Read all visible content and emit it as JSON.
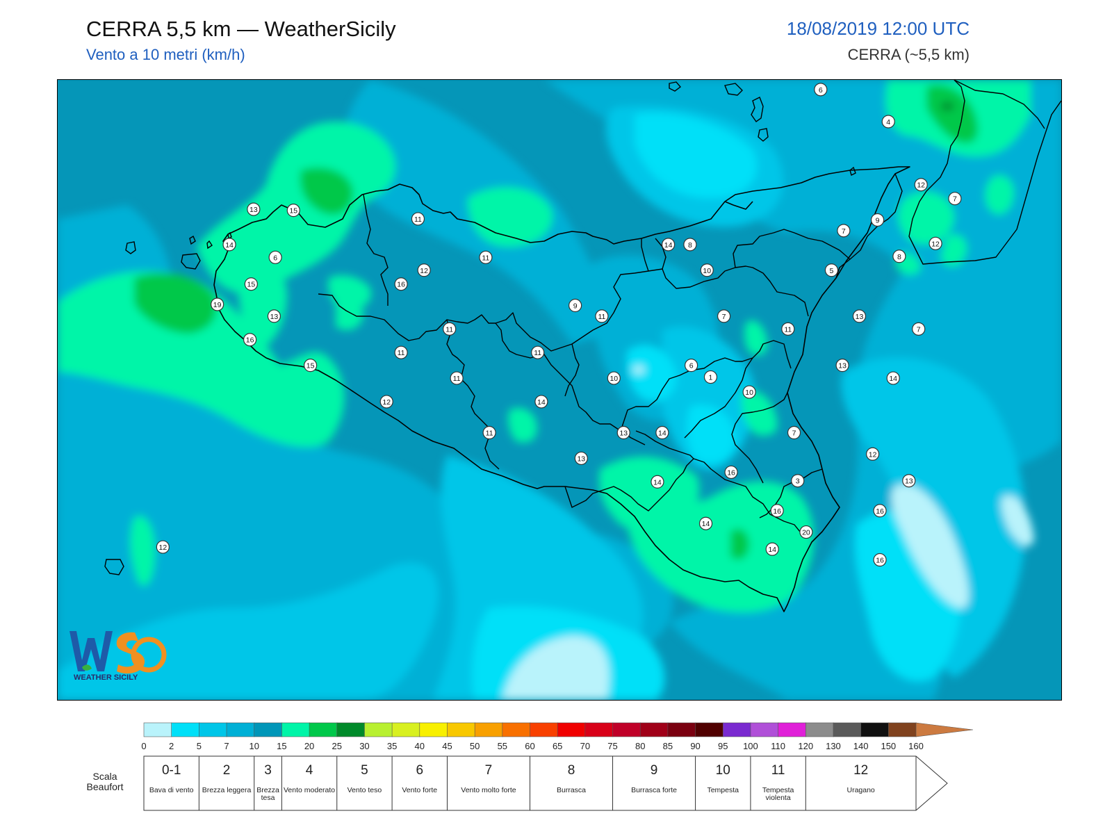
{
  "header": {
    "title": "CERRA 5,5 km — WeatherSicily",
    "subtitle": "Vento a 10 metri (km/h)",
    "datetime": "18/08/2019 12:00 UTC",
    "model": "CERRA (~5,5 km)"
  },
  "logo": {
    "icon": "weathersicily-logo",
    "text": "WEATHER SICILY"
  },
  "colorbar": {
    "ticks": [
      "0",
      "2",
      "5",
      "7",
      "10",
      "15",
      "20",
      "25",
      "30",
      "35",
      "40",
      "45",
      "50",
      "55",
      "60",
      "65",
      "70",
      "75",
      "80",
      "85",
      "90",
      "95",
      "100",
      "110",
      "120",
      "130",
      "140",
      "150",
      "160"
    ],
    "colors": [
      "#b9f3fb",
      "#00e0f8",
      "#00c6e8",
      "#00b0d6",
      "#0096b8",
      "#00f5a8",
      "#00c84a",
      "#008a2a",
      "#b8f030",
      "#d8f020",
      "#f8f000",
      "#f8c800",
      "#f8a000",
      "#f87000",
      "#f84000",
      "#f00000",
      "#d80018",
      "#c00028",
      "#a00018",
      "#7a0010",
      "#500000",
      "#7a2ad0",
      "#b050d8",
      "#e020d8",
      "#8c8c8c",
      "#5a5a5a",
      "#101010",
      "#80421e",
      "#cc7a40"
    ]
  },
  "beaufort": {
    "label": "Scala Beaufort",
    "levels": [
      {
        "num": "0-1",
        "desc": "Bava di vento"
      },
      {
        "num": "2",
        "desc": "Brezza leggera"
      },
      {
        "num": "3",
        "desc": "Brezza tesa"
      },
      {
        "num": "4",
        "desc": "Vento moderato"
      },
      {
        "num": "5",
        "desc": "Vento teso"
      },
      {
        "num": "6",
        "desc": "Vento forte"
      },
      {
        "num": "7",
        "desc": "Vento molto forte"
      },
      {
        "num": "8",
        "desc": "Burrasca"
      },
      {
        "num": "9",
        "desc": "Burrasca forte"
      },
      {
        "num": "10",
        "desc": "Tempesta"
      },
      {
        "num": "11",
        "desc": "Tempesta violenta"
      },
      {
        "num": "12",
        "desc": "Uragano"
      }
    ]
  },
  "stations": [
    {
      "v": 6,
      "lon": 14.955,
      "lat": 38.705
    },
    {
      "v": 4,
      "lon": 15.235,
      "lat": 38.555
    },
    {
      "v": 12,
      "lon": 15.37,
      "lat": 38.26
    },
    {
      "v": 7,
      "lon": 15.51,
      "lat": 38.195
    },
    {
      "v": 13,
      "lon": 12.61,
      "lat": 38.145
    },
    {
      "v": 15,
      "lon": 12.775,
      "lat": 38.14
    },
    {
      "v": 11,
      "lon": 13.29,
      "lat": 38.1
    },
    {
      "v": 9,
      "lon": 15.19,
      "lat": 38.095
    },
    {
      "v": 7,
      "lon": 15.05,
      "lat": 38.045
    },
    {
      "v": 14,
      "lon": 12.51,
      "lat": 37.98
    },
    {
      "v": 14,
      "lon": 14.325,
      "lat": 37.98
    },
    {
      "v": 8,
      "lon": 14.415,
      "lat": 37.98
    },
    {
      "v": 12,
      "lon": 15.43,
      "lat": 37.985
    },
    {
      "v": 6,
      "lon": 12.7,
      "lat": 37.92
    },
    {
      "v": 11,
      "lon": 13.57,
      "lat": 37.92
    },
    {
      "v": 8,
      "lon": 15.28,
      "lat": 37.925
    },
    {
      "v": 12,
      "lon": 13.315,
      "lat": 37.86
    },
    {
      "v": 10,
      "lon": 14.485,
      "lat": 37.86
    },
    {
      "v": 5,
      "lon": 15.0,
      "lat": 37.86
    },
    {
      "v": 15,
      "lon": 12.6,
      "lat": 37.795
    },
    {
      "v": 16,
      "lon": 13.22,
      "lat": 37.795
    },
    {
      "v": 19,
      "lon": 12.46,
      "lat": 37.7
    },
    {
      "v": 9,
      "lon": 13.94,
      "lat": 37.695
    },
    {
      "v": 13,
      "lon": 12.695,
      "lat": 37.645
    },
    {
      "v": 11,
      "lon": 14.05,
      "lat": 37.645
    },
    {
      "v": 7,
      "lon": 14.555,
      "lat": 37.645
    },
    {
      "v": 13,
      "lon": 15.115,
      "lat": 37.645
    },
    {
      "v": 11,
      "lon": 13.42,
      "lat": 37.585
    },
    {
      "v": 11,
      "lon": 14.82,
      "lat": 37.585
    },
    {
      "v": 7,
      "lon": 15.36,
      "lat": 37.585
    },
    {
      "v": 16,
      "lon": 12.595,
      "lat": 37.535
    },
    {
      "v": 11,
      "lon": 13.22,
      "lat": 37.475
    },
    {
      "v": 11,
      "lon": 13.785,
      "lat": 37.475
    },
    {
      "v": 15,
      "lon": 12.845,
      "lat": 37.415
    },
    {
      "v": 6,
      "lon": 14.42,
      "lat": 37.415
    },
    {
      "v": 13,
      "lon": 15.045,
      "lat": 37.415
    },
    {
      "v": 1,
      "lon": 14.5,
      "lat": 37.36
    },
    {
      "v": 11,
      "lon": 13.45,
      "lat": 37.355
    },
    {
      "v": 10,
      "lon": 14.1,
      "lat": 37.355
    },
    {
      "v": 14,
      "lon": 15.255,
      "lat": 37.355
    },
    {
      "v": 10,
      "lon": 14.66,
      "lat": 37.29
    },
    {
      "v": 12,
      "lon": 13.16,
      "lat": 37.245
    },
    {
      "v": 14,
      "lon": 13.8,
      "lat": 37.245
    },
    {
      "v": 7,
      "lon": 14.845,
      "lat": 37.1
    },
    {
      "v": 11,
      "lon": 13.585,
      "lat": 37.1
    },
    {
      "v": 13,
      "lon": 14.14,
      "lat": 37.1
    },
    {
      "v": 14,
      "lon": 14.3,
      "lat": 37.1
    },
    {
      "v": 12,
      "lon": 15.17,
      "lat": 37.0
    },
    {
      "v": 13,
      "lon": 13.965,
      "lat": 36.98
    },
    {
      "v": 16,
      "lon": 14.585,
      "lat": 36.915
    },
    {
      "v": 3,
      "lon": 14.86,
      "lat": 36.875
    },
    {
      "v": 13,
      "lon": 15.32,
      "lat": 36.875
    },
    {
      "v": 14,
      "lon": 14.28,
      "lat": 36.87
    },
    {
      "v": 16,
      "lon": 14.775,
      "lat": 36.735
    },
    {
      "v": 16,
      "lon": 15.2,
      "lat": 36.735
    },
    {
      "v": 14,
      "lon": 14.48,
      "lat": 36.675
    },
    {
      "v": 20,
      "lon": 14.895,
      "lat": 36.635
    },
    {
      "v": 12,
      "lon": 12.235,
      "lat": 36.565
    },
    {
      "v": 14,
      "lon": 14.755,
      "lat": 36.555
    },
    {
      "v": 16,
      "lon": 15.2,
      "lat": 36.505
    }
  ]
}
